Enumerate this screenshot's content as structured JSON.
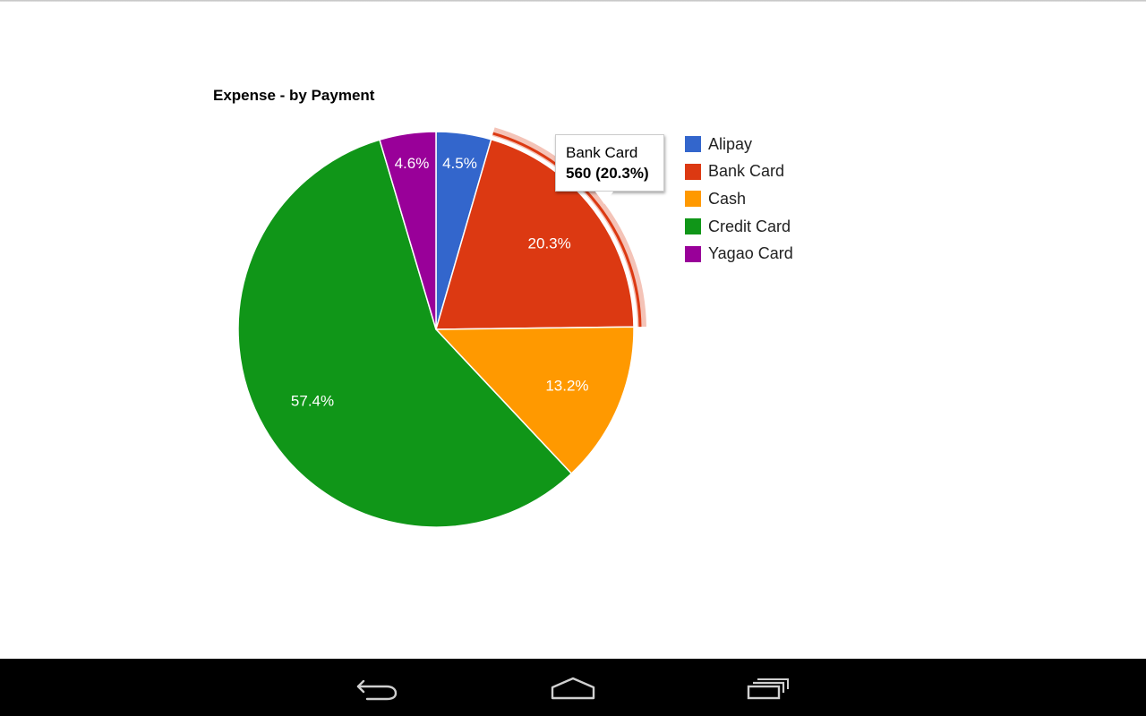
{
  "chart_data": {
    "type": "pie",
    "title": "Expense - by Payment",
    "slices": [
      {
        "label": "Alipay",
        "percent": 4.5,
        "color": "#3366cc"
      },
      {
        "label": "Bank Card",
        "percent": 20.3,
        "value": 560,
        "color": "#dc3912"
      },
      {
        "label": "Cash",
        "percent": 13.2,
        "color": "#ff9900"
      },
      {
        "label": "Credit Card",
        "percent": 57.4,
        "color": "#109618"
      },
      {
        "label": "Yagao Card",
        "percent": 4.6,
        "color": "#990099"
      }
    ],
    "legend": [
      "Alipay",
      "Bank Card",
      "Cash",
      "Credit Card",
      "Yagao Card"
    ],
    "legend_position": "right",
    "highlighted": "Bank Card"
  },
  "tooltip": {
    "title": "Bank Card",
    "value_text": "560 (20.3%)"
  },
  "navbar": {
    "icons": [
      "back-icon",
      "home-icon",
      "recent-apps-icon"
    ]
  }
}
